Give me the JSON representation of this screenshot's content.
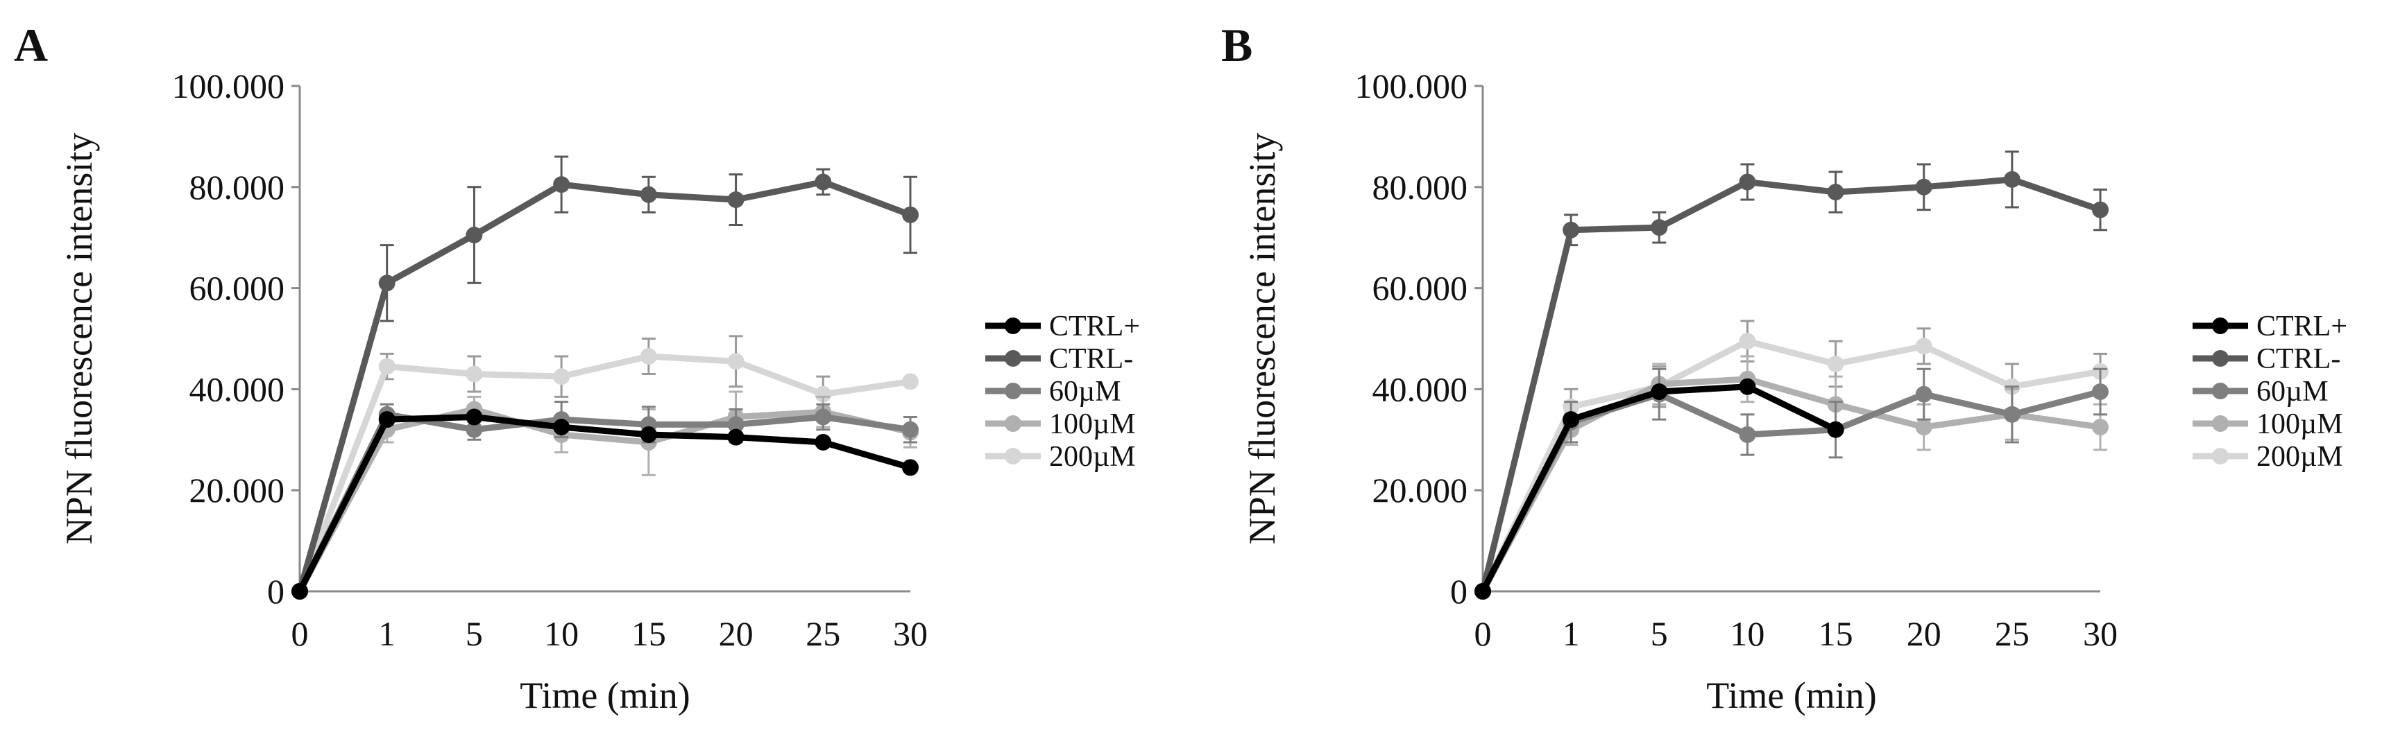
{
  "chart_data": [
    {
      "panel": "A",
      "type": "line",
      "categories": [
        "0",
        "1",
        "5",
        "10",
        "15",
        "20",
        "25",
        "30"
      ],
      "xlabel": "Time (min)",
      "ylabel": "NPN fluorescence intensity",
      "ylim": [
        0,
        100000
      ],
      "yticks": [
        {
          "value": 0,
          "label": "0"
        },
        {
          "value": 20000,
          "label": "20.000"
        },
        {
          "value": 40000,
          "label": "40.000"
        },
        {
          "value": 60000,
          "label": "60.000"
        },
        {
          "value": 80000,
          "label": "80.000"
        },
        {
          "value": 100000,
          "label": "100.000"
        }
      ],
      "grid": false,
      "legend_position": "right",
      "series": [
        {
          "name": "CTRL+",
          "color": "#000000",
          "values": [
            0,
            34000,
            34500,
            32500,
            31000,
            30500,
            29500,
            24500
          ],
          "errors": [
            0,
            0,
            0,
            0,
            0,
            0,
            0,
            0
          ]
        },
        {
          "name": "CTRL-",
          "color": "#595959",
          "values": [
            0,
            61000,
            70500,
            80500,
            78500,
            77500,
            81000,
            74500
          ],
          "errors": [
            0,
            7500,
            9500,
            5500,
            3500,
            5000,
            2500,
            7500
          ]
        },
        {
          "name": "60µM",
          "color": "#7f7f7f",
          "values": [
            0,
            35000,
            32000,
            34000,
            33000,
            33000,
            34500,
            32000
          ],
          "errors": [
            0,
            2000,
            2000,
            3500,
            3500,
            3000,
            2500,
            2500
          ]
        },
        {
          "name": "100µM",
          "color": "#b0b0b0",
          "values": [
            0,
            32000,
            36000,
            31000,
            29500,
            34500,
            35500,
            31500
          ],
          "errors": [
            0,
            2500,
            2500,
            3500,
            6500,
            5000,
            3000,
            3000
          ]
        },
        {
          "name": "200µM",
          "color": "#d6d6d6",
          "values": [
            0,
            44500,
            43000,
            42500,
            46500,
            45500,
            39000,
            41500
          ],
          "errors": [
            0,
            2500,
            3500,
            4000,
            3500,
            5000,
            3500,
            0
          ]
        }
      ]
    },
    {
      "panel": "B",
      "type": "line",
      "categories": [
        "0",
        "1",
        "5",
        "10",
        "15",
        "20",
        "25",
        "30"
      ],
      "xlabel": "Time (min)",
      "ylabel": "NPN fluorescence intensity",
      "ylim": [
        0,
        100000
      ],
      "yticks": [
        {
          "value": 0,
          "label": "0"
        },
        {
          "value": 20000,
          "label": "20.000"
        },
        {
          "value": 40000,
          "label": "40.000"
        },
        {
          "value": 60000,
          "label": "60.000"
        },
        {
          "value": 80000,
          "label": "80.000"
        },
        {
          "value": 100000,
          "label": "100.000"
        }
      ],
      "grid": false,
      "legend_position": "right",
      "series": [
        {
          "name": "CTRL+",
          "color": "#000000",
          "values": [
            0,
            34000,
            39500,
            40500,
            32000,
            null,
            null,
            null
          ],
          "errors": [
            0,
            0,
            0,
            0,
            0,
            0,
            0,
            0
          ]
        },
        {
          "name": "CTRL-",
          "color": "#595959",
          "values": [
            0,
            71500,
            72000,
            81000,
            79000,
            80000,
            81500,
            75500
          ],
          "errors": [
            0,
            3000,
            3000,
            3500,
            4000,
            4500,
            5500,
            4000
          ]
        },
        {
          "name": "60µM",
          "color": "#7f7f7f",
          "values": [
            0,
            33500,
            39000,
            31000,
            32000,
            39000,
            35000,
            39500
          ],
          "errors": [
            0,
            4000,
            5000,
            4000,
            5500,
            5000,
            5500,
            4500
          ]
        },
        {
          "name": "100µM",
          "color": "#b0b0b0",
          "values": [
            0,
            32000,
            41000,
            42000,
            37000,
            32500,
            35000,
            32500
          ],
          "errors": [
            0,
            3000,
            4000,
            4500,
            5500,
            4500,
            5000,
            4500
          ]
        },
        {
          "name": "200µM",
          "color": "#d6d6d6",
          "values": [
            0,
            36500,
            40500,
            49500,
            45000,
            48500,
            40500,
            43500
          ],
          "errors": [
            0,
            3500,
            4000,
            4000,
            4500,
            3500,
            4500,
            3500
          ]
        }
      ]
    }
  ]
}
